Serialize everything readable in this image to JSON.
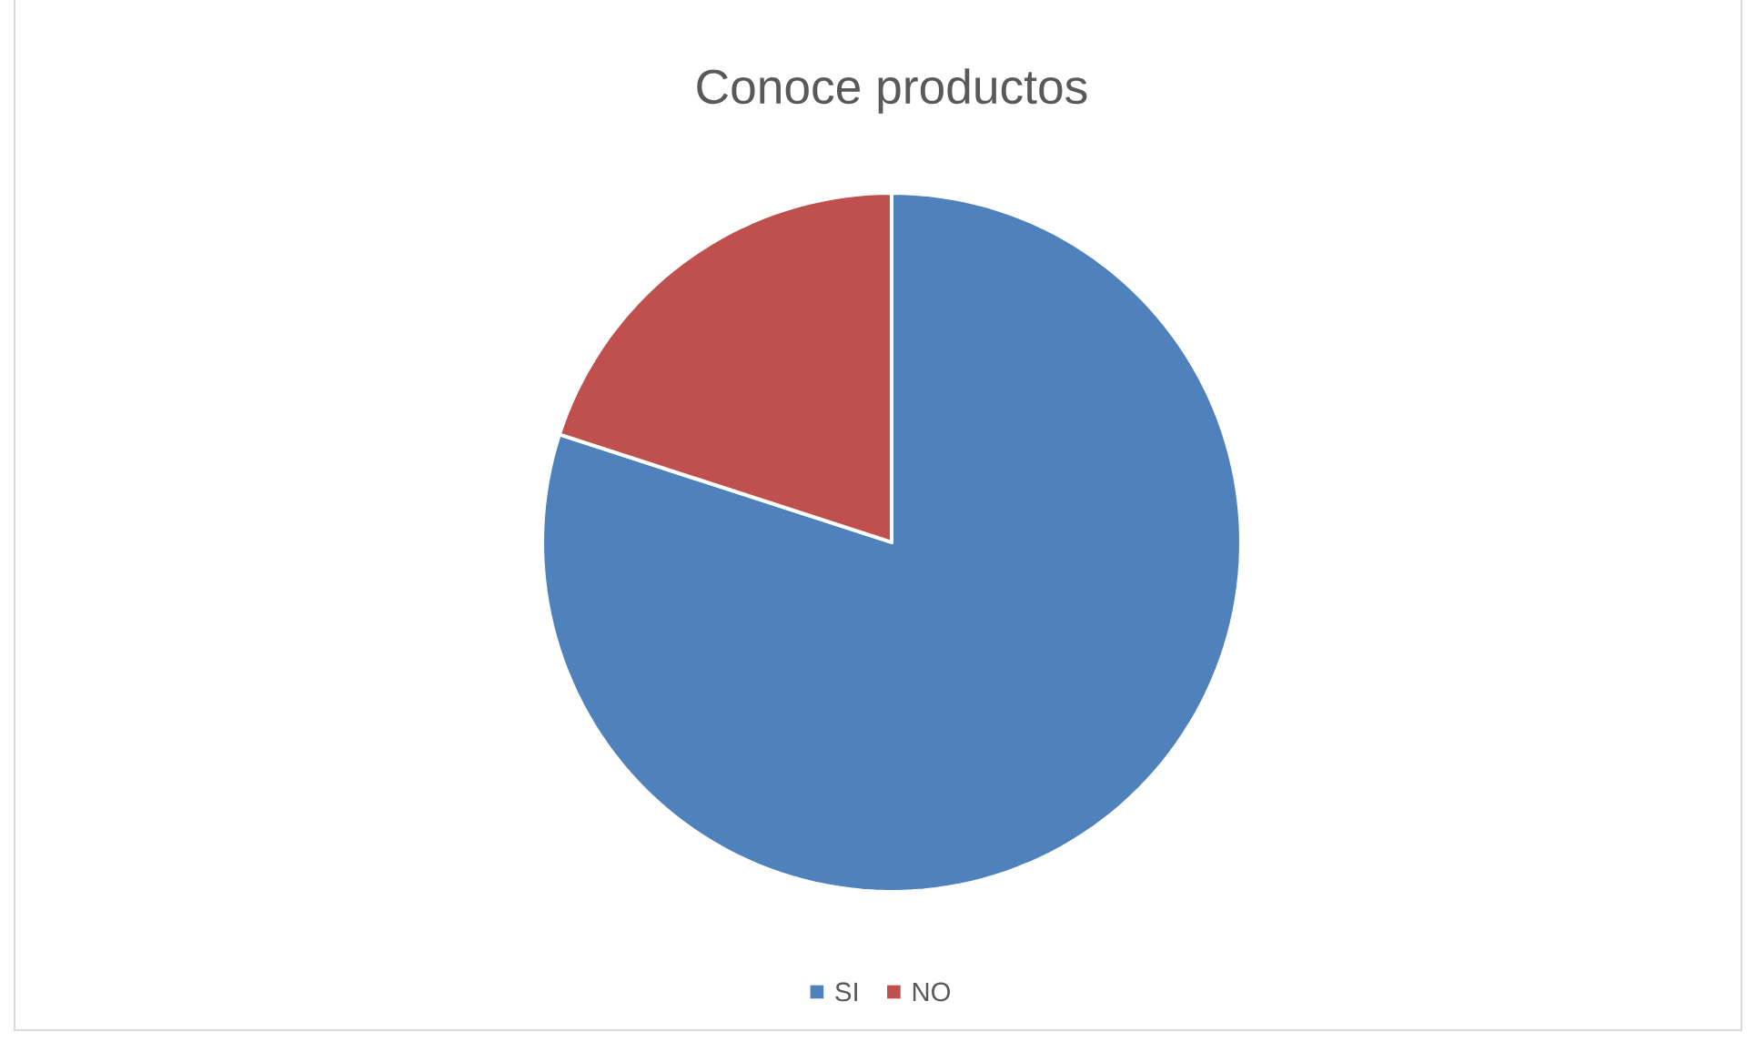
{
  "chart_data": {
    "type": "pie",
    "title": "Conoce productos",
    "categories": [
      "SI",
      "NO"
    ],
    "values": [
      80,
      20
    ],
    "colors": [
      "#4f81bd",
      "#c0504d"
    ],
    "legend": "bottom"
  }
}
